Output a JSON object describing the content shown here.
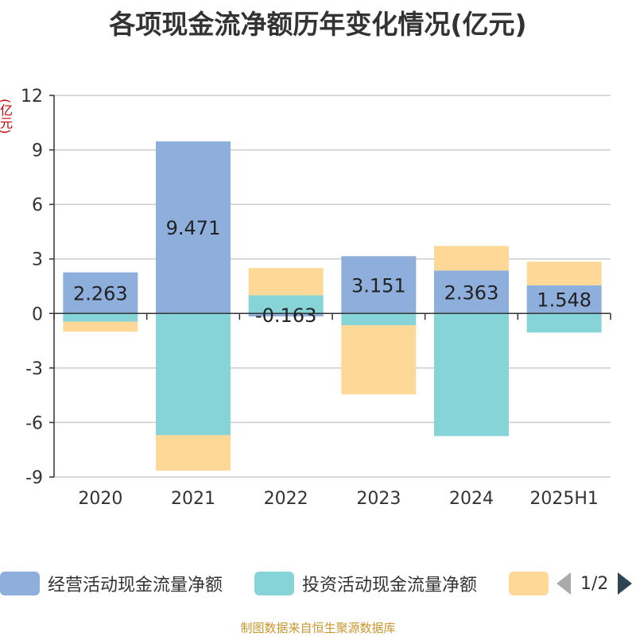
{
  "chart_data": {
    "type": "bar",
    "stacked": true,
    "title": "各项现金流净额历年变化情况(亿元)",
    "ylabel": "(亿元)",
    "categories": [
      "2020",
      "2021",
      "2022",
      "2023",
      "2024",
      "2025H1"
    ],
    "ylim": [
      -9,
      12
    ],
    "yticks": [
      12,
      9,
      6,
      3,
      0,
      -3,
      -6,
      -9
    ],
    "ytick_labels": [
      "12",
      "9",
      "6",
      "3",
      "0",
      "-3",
      "-6",
      "-9"
    ],
    "grid": true,
    "series": [
      {
        "name": "经营活动现金流量净额",
        "color": "#8eaedb",
        "values": [
          2.263,
          9.471,
          -0.163,
          3.151,
          2.363,
          1.548
        ],
        "labels": [
          "2.263",
          "9.471",
          "-0.163",
          "3.151",
          "2.363",
          "1.548"
        ]
      },
      {
        "name": "投资活动现金流量净额",
        "color": "#86d4d8",
        "values": [
          -0.45,
          -6.7,
          1.0,
          -0.65,
          -6.75,
          -1.05
        ]
      },
      {
        "name": "",
        "color": "#fdd897",
        "values": [
          -0.55,
          -1.95,
          1.5,
          -3.8,
          1.35,
          1.3
        ]
      }
    ]
  },
  "legend": {
    "items": [
      {
        "label": "经营活动现金流量净额",
        "color": "#8eaedb"
      },
      {
        "label": "投资活动现金流量净额",
        "color": "#86d4d8"
      },
      {
        "label": "",
        "color": "#fdd897"
      }
    ],
    "page": "1/2"
  },
  "source": "制图数据来自恒生聚源数据库"
}
